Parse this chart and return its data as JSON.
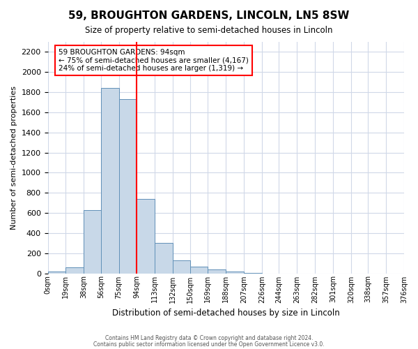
{
  "title": "59, BROUGHTON GARDENS, LINCOLN, LN5 8SW",
  "subtitle": "Size of property relative to semi-detached houses in Lincoln",
  "xlabel": "Distribution of semi-detached houses by size in Lincoln",
  "ylabel": "Number of semi-detached properties",
  "bar_color": "#c8d8e8",
  "bar_edge_color": "#6090b8",
  "bin_edges": [
    0,
    19,
    38,
    56,
    75,
    94,
    113,
    132,
    150,
    169,
    188,
    207,
    226,
    244,
    263,
    282,
    301,
    320,
    338,
    357,
    376
  ],
  "bin_tick_labels": [
    "0sqm",
    "19sqm",
    "38sqm",
    "56sqm",
    "75sqm",
    "94sqm",
    "113sqm",
    "132sqm",
    "150sqm",
    "169sqm",
    "188sqm",
    "207sqm",
    "226sqm",
    "244sqm",
    "263sqm",
    "282sqm",
    "301sqm",
    "320sqm",
    "338sqm",
    "357sqm",
    "376sqm"
  ],
  "bar_values": [
    20,
    60,
    630,
    1840,
    1730,
    740,
    300,
    130,
    65,
    40,
    15,
    5,
    0,
    0,
    0,
    0,
    0,
    0,
    0,
    0
  ],
  "property_bin_index": 5,
  "annotation_title": "59 BROUGHTON GARDENS: 94sqm",
  "annotation_line1": "← 75% of semi-detached houses are smaller (4,167)",
  "annotation_line2": "24% of semi-detached houses are larger (1,319) →",
  "annotation_box_color": "white",
  "annotation_box_edge_color": "red",
  "vline_color": "red",
  "ylim": [
    0,
    2300
  ],
  "yticks": [
    0,
    200,
    400,
    600,
    800,
    1000,
    1200,
    1400,
    1600,
    1800,
    2000,
    2200
  ],
  "grid_color": "#d0d8e8",
  "background_color": "white",
  "footer_line1": "Contains HM Land Registry data © Crown copyright and database right 2024.",
  "footer_line2": "Contains public sector information licensed under the Open Government Licence v3.0."
}
